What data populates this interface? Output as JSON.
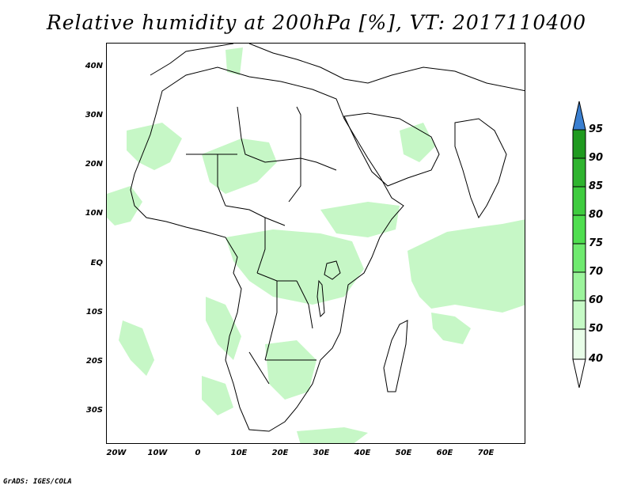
{
  "title": "Relative humidity at 200hPa [%], VT: 2017110400",
  "credit": "GrADS: IGES/COLA",
  "map": {
    "lat_ticks": [
      "40N",
      "30N",
      "20N",
      "10N",
      "EQ",
      "10S",
      "20S",
      "30S"
    ],
    "lon_ticks": [
      "20W",
      "10W",
      "0",
      "10E",
      "20E",
      "30E",
      "40E",
      "50E",
      "60E",
      "70E"
    ],
    "land_color": "#ffffff",
    "border_color": "#000000"
  },
  "colorbar": {
    "levels": [
      "95",
      "90",
      "85",
      "80",
      "75",
      "70",
      "60",
      "50",
      "40"
    ],
    "colors": [
      "#3a7fd0",
      "#1f9a1f",
      "#2fb42f",
      "#3fcc3f",
      "#4fde4f",
      "#6fea6f",
      "#9cf49c",
      "#c6fac6",
      "#e8fde8"
    ],
    "over_color": "#3a7fd0",
    "under_color": "#ffffff"
  },
  "humidity_fill": "#c6f7c6"
}
